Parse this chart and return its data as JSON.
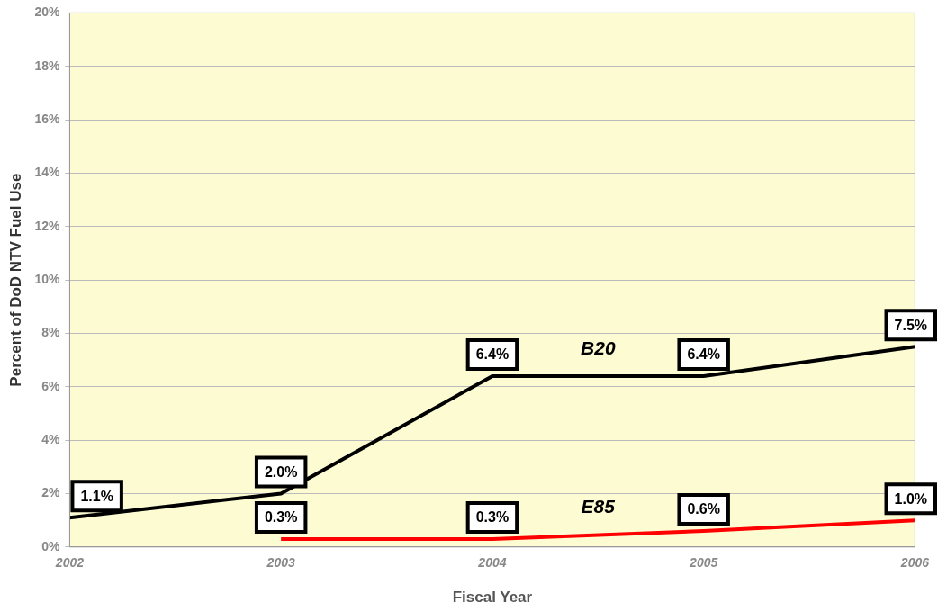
{
  "chart_data": {
    "type": "line",
    "xlabel": "Fiscal Year",
    "ylabel": "Percent of DoD NTV Fuel Use",
    "x": [
      2002,
      2003,
      2004,
      2005,
      2006
    ],
    "xlim": [
      2002,
      2006
    ],
    "xticks": [
      2002,
      2003,
      2004,
      2005,
      2006
    ],
    "ylim": [
      0,
      20
    ],
    "yticks": [
      {
        "value": 0,
        "label": "0%"
      },
      {
        "value": 2,
        "label": "2%"
      },
      {
        "value": 4,
        "label": "4%"
      },
      {
        "value": 6,
        "label": "6%"
      },
      {
        "value": 8,
        "label": "8%"
      },
      {
        "value": 10,
        "label": "10%"
      },
      {
        "value": 12,
        "label": "12%"
      },
      {
        "value": 14,
        "label": "14%"
      },
      {
        "value": 16,
        "label": "16%"
      },
      {
        "value": 18,
        "label": "18%"
      },
      {
        "value": 20,
        "label": "20%"
      }
    ],
    "series": [
      {
        "name": "B20",
        "color": "#000000",
        "values": [
          1.1,
          2.0,
          6.4,
          6.4,
          7.5
        ],
        "value_labels": [
          "1.1%",
          "2.0%",
          "6.4%",
          "6.4%",
          "7.5%"
        ]
      },
      {
        "name": "E85",
        "color": "#ff0000",
        "values": [
          null,
          0.3,
          0.3,
          0.6,
          1.0
        ],
        "value_labels": [
          null,
          "0.3%",
          "0.3%",
          "0.6%",
          "1.0%"
        ]
      }
    ],
    "grid": "y",
    "legend": false,
    "marker": "none",
    "line_style": "solid"
  }
}
